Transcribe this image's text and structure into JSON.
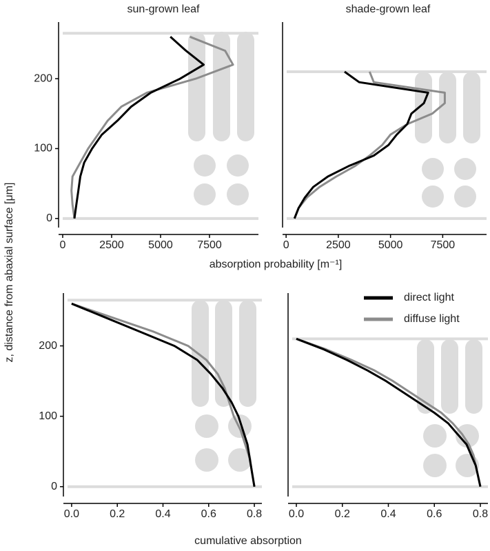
{
  "chart_data": [
    {
      "type": "line",
      "title": "sun-grown leaf",
      "ylabel": "z, distance from abaxial surface [μm]",
      "xlabel": "absorption probability [m⁻¹]",
      "y": [
        0,
        20,
        40,
        60,
        80,
        100,
        120,
        140,
        160,
        180,
        200,
        220,
        240,
        260
      ],
      "series": [
        {
          "color": "#8c8c8c",
          "values": [
            600,
            500,
            450,
            500,
            900,
            1300,
            1800,
            2300,
            3000,
            4300,
            6800,
            8700,
            8300,
            6500
          ]
        },
        {
          "color": "#000000",
          "values": [
            600,
            700,
            800,
            900,
            1100,
            1500,
            2000,
            2800,
            3500,
            4500,
            6000,
            7200,
            6300,
            5500
          ]
        }
      ],
      "xlim": [
        -210,
        10000
      ],
      "ylim": [
        -13,
        281
      ],
      "xticks": [
        0,
        2500,
        5000,
        7500
      ],
      "yticks": [
        0,
        100,
        200
      ],
      "leaf_surfaces": [
        0,
        265
      ]
    },
    {
      "type": "line",
      "title": "shade-grown leaf",
      "y": [
        0,
        15,
        30,
        45,
        60,
        75,
        90,
        105,
        120,
        135,
        150,
        165,
        180,
        195,
        210
      ],
      "series": [
        {
          "color": "#8c8c8c",
          "values": [
            400,
            600,
            1000,
            1600,
            2400,
            3300,
            4000,
            4600,
            5000,
            5800,
            7000,
            7600,
            7600,
            4200,
            4000
          ]
        },
        {
          "color": "#000000",
          "values": [
            400,
            600,
            900,
            1300,
            2000,
            3000,
            4200,
            4900,
            5300,
            5800,
            6000,
            6600,
            6800,
            3500,
            2800
          ]
        }
      ],
      "xlim": [
        -170,
        9600
      ],
      "ylim": [
        -13,
        281
      ],
      "xticks": [
        0,
        2500,
        5000,
        7500
      ],
      "leaf_surfaces": [
        0,
        210
      ]
    },
    {
      "type": "line",
      "xlabel": "cumulative absorption",
      "y": [
        0,
        20,
        40,
        60,
        80,
        100,
        120,
        140,
        160,
        180,
        200,
        220,
        240,
        260
      ],
      "series": [
        {
          "color": "#8c8c8c",
          "values": [
            0.8,
            0.79,
            0.78,
            0.76,
            0.74,
            0.71,
            0.69,
            0.67,
            0.64,
            0.59,
            0.51,
            0.36,
            0.18,
            0.0
          ]
        },
        {
          "color": "#000000",
          "values": [
            0.8,
            0.79,
            0.78,
            0.77,
            0.75,
            0.73,
            0.7,
            0.66,
            0.61,
            0.55,
            0.45,
            0.3,
            0.15,
            0.0
          ]
        }
      ],
      "xlim": [
        -0.036,
        0.833
      ],
      "ylim": [
        -14,
        275
      ],
      "xticks": [
        {
          "value": 0,
          "label": "0.0"
        },
        0.2,
        0.4,
        0.6,
        0.8
      ],
      "yticks": [
        0,
        100,
        200
      ],
      "leaf_surfaces": [
        0,
        265
      ]
    },
    {
      "type": "line",
      "y": [
        0,
        15,
        30,
        45,
        60,
        75,
        90,
        105,
        120,
        135,
        150,
        165,
        180,
        195,
        210
      ],
      "series": [
        {
          "name": "diffuse light",
          "color": "#8c8c8c",
          "values": [
            0.8,
            0.79,
            0.78,
            0.77,
            0.75,
            0.72,
            0.68,
            0.63,
            0.56,
            0.49,
            0.42,
            0.34,
            0.24,
            0.13,
            0.0
          ]
        },
        {
          "name": "direct light",
          "color": "#000000",
          "values": [
            0.8,
            0.79,
            0.78,
            0.76,
            0.74,
            0.7,
            0.66,
            0.6,
            0.53,
            0.46,
            0.39,
            0.31,
            0.22,
            0.12,
            0.0
          ]
        }
      ],
      "xlim": [
        -0.036,
        0.833
      ],
      "ylim": [
        -14,
        275
      ],
      "xticks": [
        {
          "value": 0,
          "label": "0.0"
        },
        0.2,
        0.4,
        0.6,
        0.8
      ],
      "leaf_surfaces": [
        0,
        210
      ]
    }
  ]
}
